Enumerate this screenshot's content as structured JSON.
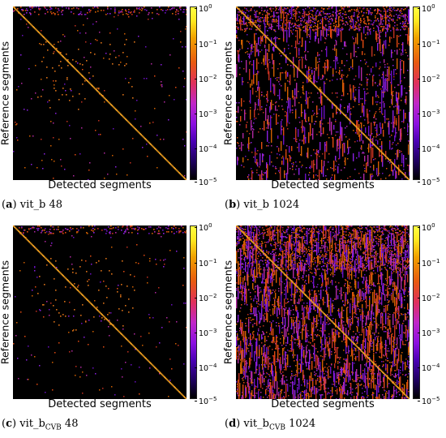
{
  "chart_data": [
    {
      "type": "heatmap",
      "panel_label": "a",
      "caption_name": "vit_b",
      "caption_sub": "",
      "caption_value": "48",
      "xlabel": "Detected segments",
      "ylabel": "Reference segments",
      "colorbar": {
        "scale": "log",
        "range": [
          1e-05,
          1
        ],
        "ticks": [
          "10",
          "10",
          "10",
          "10",
          "10",
          "10"
        ],
        "exponents": [
          "0",
          "−1",
          "−2",
          "−3",
          "−4",
          "−5"
        ]
      },
      "density": "sparse",
      "diagonal": true
    },
    {
      "type": "heatmap",
      "panel_label": "b",
      "caption_name": "vit_b",
      "caption_sub": "",
      "caption_value": "1024",
      "xlabel": "Detected segments",
      "ylabel": "Reference segments",
      "colorbar": {
        "scale": "log",
        "range": [
          1e-05,
          1
        ],
        "ticks": [
          "10",
          "10",
          "10",
          "10",
          "10",
          "10"
        ],
        "exponents": [
          "0",
          "−1",
          "−2",
          "−3",
          "−4",
          "−5"
        ]
      },
      "density": "medium",
      "diagonal": true
    },
    {
      "type": "heatmap",
      "panel_label": "c",
      "caption_name": "vit_b",
      "caption_sub": "CVB",
      "caption_value": "48",
      "xlabel": "Detected segments",
      "ylabel": "Reference segments",
      "colorbar": {
        "scale": "log",
        "range": [
          1e-05,
          1
        ],
        "ticks": [
          "10",
          "10",
          "10",
          "10",
          "10",
          "10"
        ],
        "exponents": [
          "0",
          "−1",
          "−2",
          "−3",
          "−4",
          "−5"
        ]
      },
      "density": "sparse",
      "diagonal": true
    },
    {
      "type": "heatmap",
      "panel_label": "d",
      "caption_name": "vit_b",
      "caption_sub": "CVB",
      "caption_value": "1024",
      "xlabel": "Detected segments",
      "ylabel": "Reference segments",
      "colorbar": {
        "scale": "log",
        "range": [
          1e-05,
          1
        ],
        "ticks": [
          "10",
          "10",
          "10",
          "10",
          "10",
          "10"
        ],
        "exponents": [
          "0",
          "−1",
          "−2",
          "−3",
          "−4",
          "−5"
        ]
      },
      "density": "dense",
      "diagonal": true
    }
  ],
  "colors": {
    "background": "#000000",
    "diagonal": "#f0a020",
    "scatter": [
      "#e04a10",
      "#c03020",
      "#8a20e0",
      "#6a10c0",
      "#d06000",
      "#b028a0"
    ]
  }
}
